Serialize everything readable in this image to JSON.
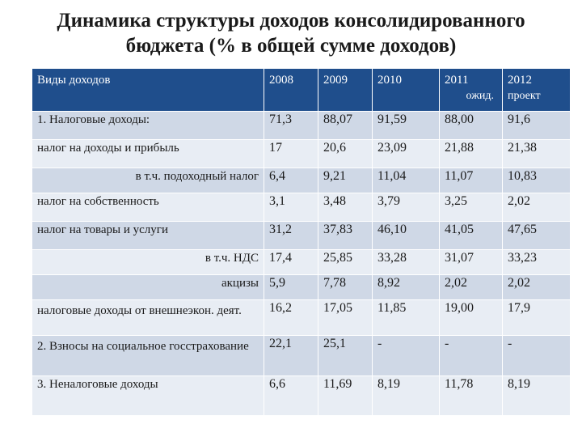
{
  "title": {
    "line1": "Динамика структуры доходов консолидированного",
    "line2": "бюджета (% в общей сумме доходов)"
  },
  "table": {
    "header": {
      "label": "Виды доходов",
      "years": [
        {
          "year": "2008",
          "note": ""
        },
        {
          "year": "2009",
          "note": ""
        },
        {
          "year": "2010",
          "note": ""
        },
        {
          "year": "2011",
          "note": "ожид."
        },
        {
          "year": "2012",
          "note": "проект"
        }
      ]
    },
    "rows": [
      {
        "label": "1. Налоговые доходы:",
        "values": [
          "71,3",
          "88,07",
          "91,59",
          "88,00",
          "91,6"
        ]
      },
      {
        "label": "налог на доходы и прибыль",
        "values": [
          "17",
          "20,6",
          "23,09",
          "21,88",
          "21,38"
        ]
      },
      {
        "label": "в т.ч. подоходный налог",
        "values": [
          "6,4",
          "9,21",
          "11,04",
          "11,07",
          "10,83"
        ]
      },
      {
        "label": "налог на собственность",
        "values": [
          "3,1",
          "3,48",
          "3,79",
          "3,25",
          "2,02"
        ]
      },
      {
        "label": "налог на товары и услуги",
        "values": [
          "31,2",
          "37,83",
          "46,10",
          "41,05",
          "47,65"
        ]
      },
      {
        "label": "в т.ч. НДС",
        "values": [
          "17,4",
          "25,85",
          "33,28",
          "31,07",
          "33,23"
        ]
      },
      {
        "label": "акцизы",
        "values": [
          "5,9",
          "7,78",
          "8,92",
          "2,02",
          "2,02"
        ]
      },
      {
        "label": "налоговые доходы от внешнеэкон. деят.",
        "values": [
          "16,2",
          "17,05",
          "11,85",
          "19,00",
          "17,9"
        ]
      },
      {
        "label": "2. Взносы на социальное госстрахование",
        "values": [
          "22,1",
          "25,1",
          "-",
          "-",
          "-"
        ]
      },
      {
        "label": "3. Неналоговые доходы",
        "values": [
          "6,6",
          "11,69",
          "8,19",
          "11,78",
          "8,19"
        ]
      }
    ]
  },
  "colors": {
    "header_bg": "#1f4e8c",
    "row_dark": "#cfd8e6",
    "row_light": "#e8edf4"
  }
}
